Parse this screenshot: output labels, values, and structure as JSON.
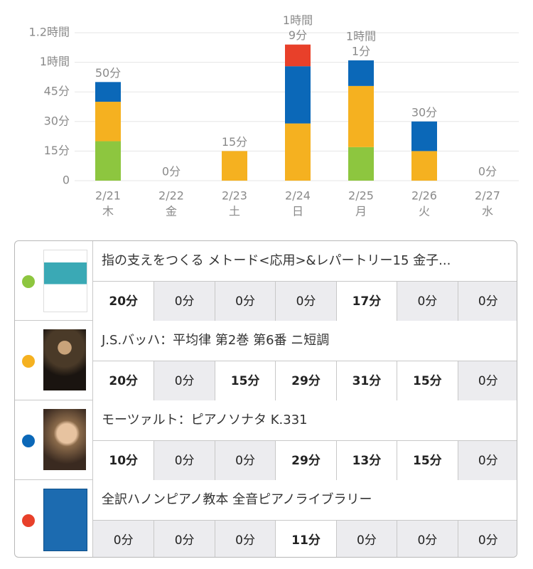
{
  "chart_data": {
    "type": "stacked-bar",
    "categories": [
      "2/21",
      "2/22",
      "2/23",
      "2/24",
      "2/25",
      "2/26",
      "2/27"
    ],
    "weekdays": [
      "木",
      "金",
      "土",
      "日",
      "月",
      "火",
      "水"
    ],
    "series": [
      {
        "color": "#8dc63f",
        "values": [
          20,
          0,
          0,
          0,
          17,
          0,
          0
        ]
      },
      {
        "color": "#f5b120",
        "values": [
          20,
          0,
          15,
          29,
          31,
          15,
          0
        ]
      },
      {
        "color": "#0b68b8",
        "values": [
          10,
          0,
          0,
          29,
          13,
          15,
          0
        ]
      },
      {
        "color": "#e8402a",
        "values": [
          0,
          0,
          0,
          11,
          0,
          0,
          0
        ]
      }
    ],
    "totals": {
      "values": [
        50,
        0,
        15,
        69,
        61,
        30,
        0
      ],
      "value_labels": [
        [
          "50分"
        ],
        [
          "0分"
        ],
        [
          "15分"
        ],
        [
          "1時間",
          "9分"
        ],
        [
          "1時間",
          "1分"
        ],
        [
          "30分"
        ],
        [
          "0分"
        ]
      ]
    },
    "ylim": [
      0,
      75
    ],
    "yticks": [
      0,
      {
        "value": 15,
        "label": "15分"
      },
      {
        "value": 30,
        "label": "30分"
      },
      {
        "value": 45,
        "label": "45分"
      },
      {
        "value": 60,
        "label": "1時間"
      },
      {
        "value": 75,
        "label": "1.2時間"
      }
    ],
    "grid": true
  },
  "pieces": [
    {
      "title": "指の支えをつくる メトード<応用>&レパートリー15 金子...",
      "cells": [
        "20分",
        "0分",
        "0分",
        "0分",
        "17分",
        "0分",
        "0分"
      ]
    },
    {
      "title": "J.S.バッハ：平均律 第2巻 第6番 ニ短調",
      "cells": [
        "20分",
        "0分",
        "15分",
        "29分",
        "31分",
        "15分",
        "0分"
      ]
    },
    {
      "title": "モーツァルト：ピアノソナタ K.331",
      "cells": [
        "10分",
        "0分",
        "0分",
        "29分",
        "13分",
        "15分",
        "0分"
      ]
    },
    {
      "title": "全訳ハノンピアノ教本  全音ピアノライブラリー",
      "cells": [
        "0分",
        "0分",
        "0分",
        "11分",
        "0分",
        "0分",
        "0分"
      ]
    }
  ]
}
